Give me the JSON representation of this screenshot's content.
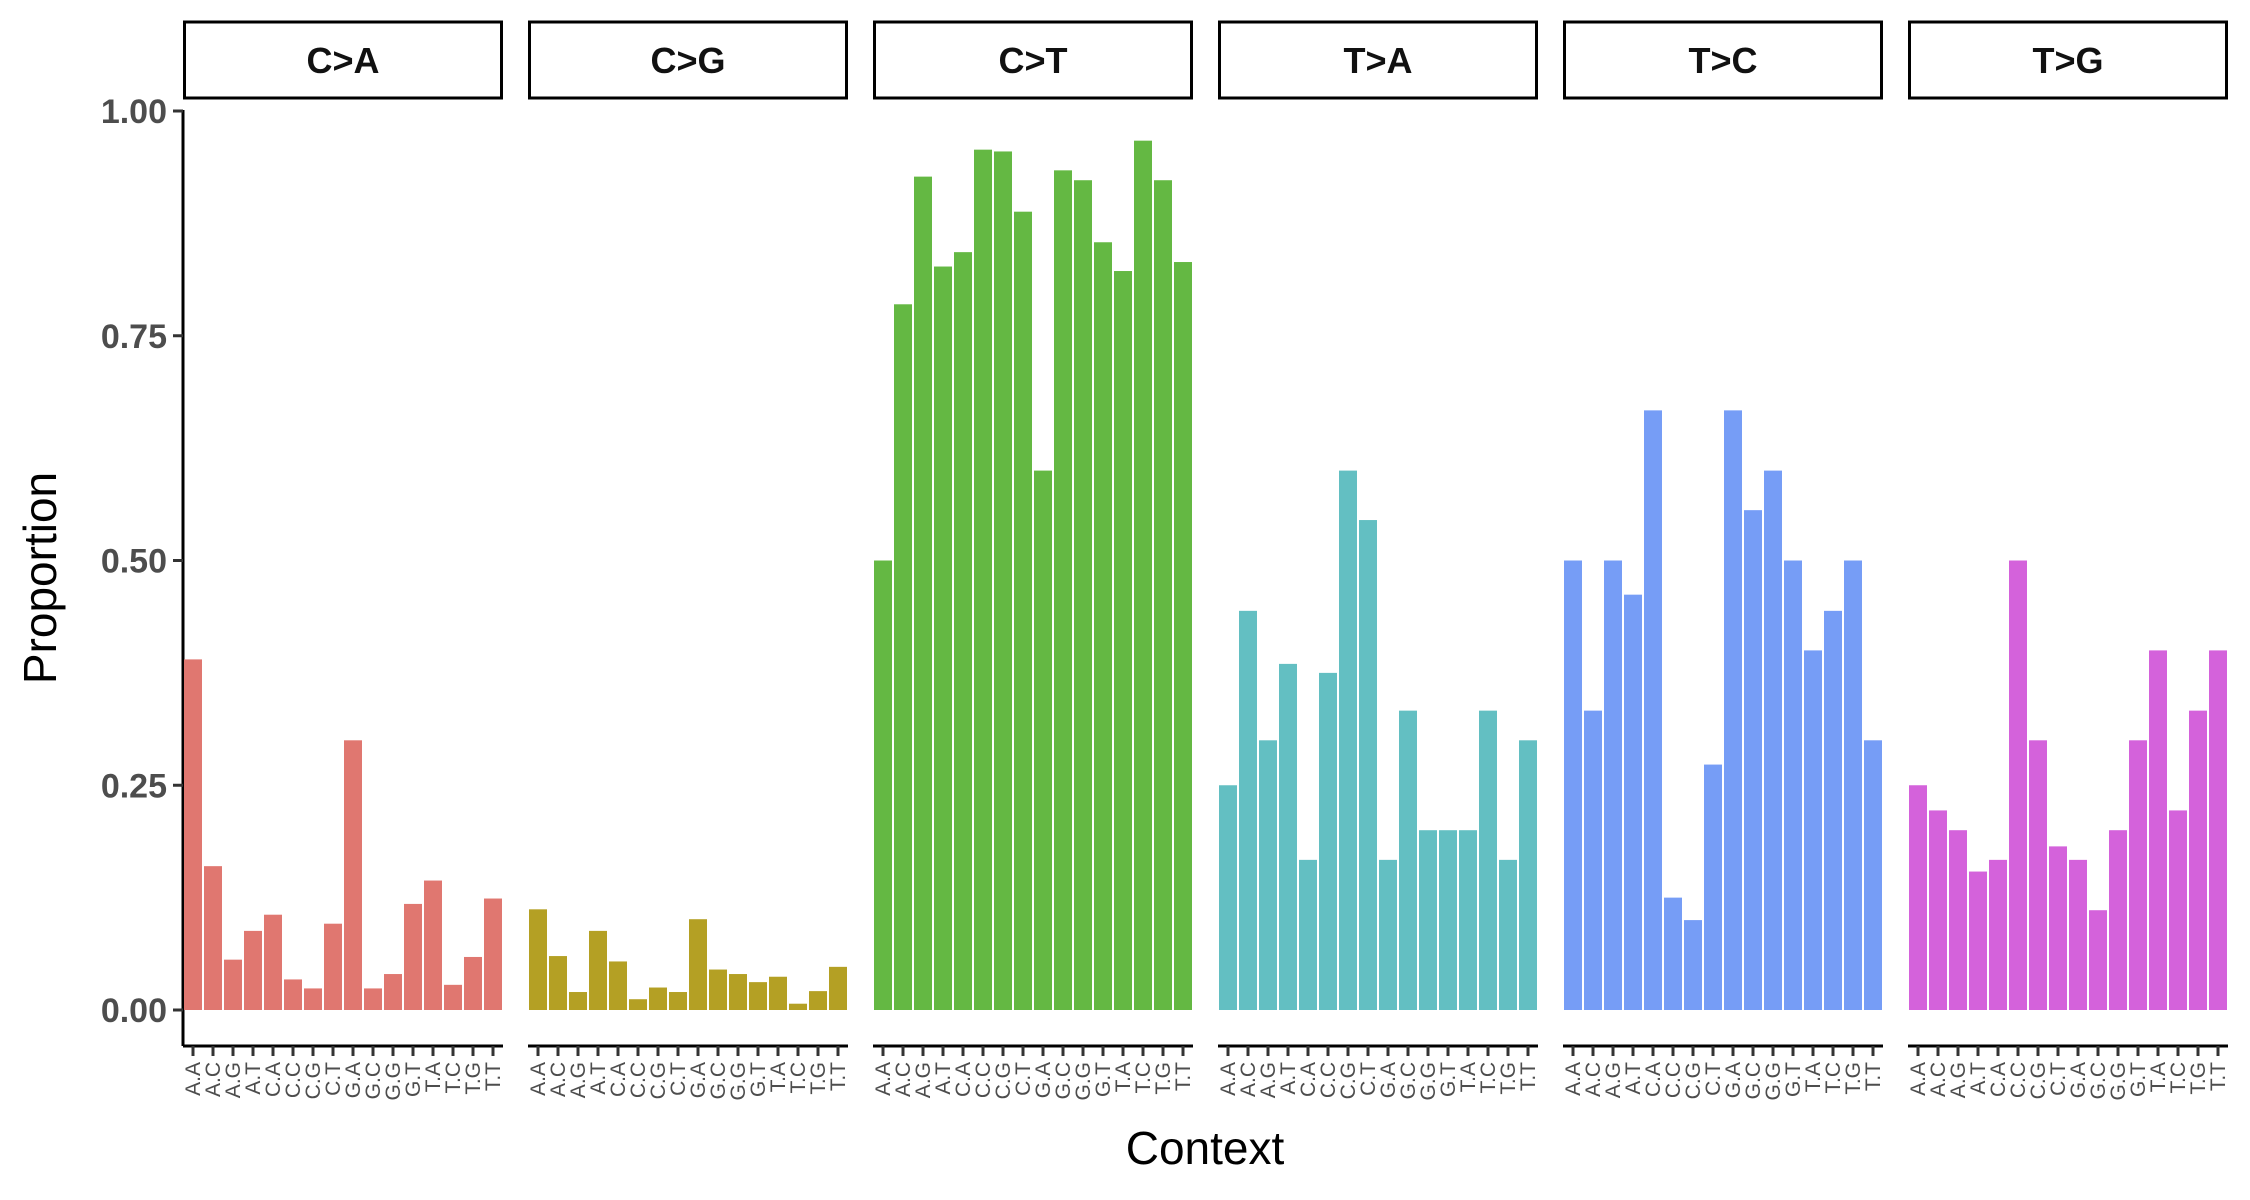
{
  "chart_data": {
    "type": "bar",
    "xlabel": "Context",
    "ylabel": "Proportion",
    "ylim": [
      0,
      1.0
    ],
    "yticks": [
      "0.00",
      "0.25",
      "0.50",
      "0.75",
      "1.00"
    ],
    "categories": [
      "A.A",
      "A.C",
      "A.G",
      "A.T",
      "C.A",
      "C.C",
      "C.G",
      "C.T",
      "G.A",
      "G.C",
      "G.G",
      "G.T",
      "T.A",
      "T.C",
      "T.G",
      "T.T"
    ],
    "grid": false,
    "legend": "none",
    "facets": [
      {
        "name": "C>A",
        "color": "#E07770",
        "values": [
          0.39,
          0.16,
          0.056,
          0.088,
          0.106,
          0.034,
          0.024,
          0.096,
          0.3,
          0.024,
          0.04,
          0.118,
          0.144,
          0.028,
          0.059,
          0.124
        ]
      },
      {
        "name": "C>G",
        "color": "#B4A024",
        "values": [
          0.112,
          0.06,
          0.02,
          0.088,
          0.054,
          0.012,
          0.025,
          0.02,
          0.101,
          0.045,
          0.04,
          0.031,
          0.037,
          0.007,
          0.021,
          0.048
        ]
      },
      {
        "name": "C>T",
        "color": "#64B843",
        "values": [
          0.5,
          0.785,
          0.927,
          0.827,
          0.843,
          0.957,
          0.955,
          0.888,
          0.6,
          0.934,
          0.923,
          0.854,
          0.822,
          0.967,
          0.923,
          0.832
        ]
      },
      {
        "name": "T>A",
        "color": "#63BFC2",
        "values": [
          0.25,
          0.444,
          0.3,
          0.385,
          0.167,
          0.375,
          0.6,
          0.545,
          0.167,
          0.333,
          0.2,
          0.2,
          0.2,
          0.333,
          0.167,
          0.3
        ]
      },
      {
        "name": "T>C",
        "color": "#769DF6",
        "values": [
          0.5,
          0.333,
          0.5,
          0.462,
          0.667,
          0.125,
          0.1,
          0.273,
          0.667,
          0.556,
          0.6,
          0.5,
          0.4,
          0.444,
          0.5,
          0.3
        ]
      },
      {
        "name": "T>G",
        "color": "#D462DB",
        "values": [
          0.25,
          0.222,
          0.2,
          0.154,
          0.167,
          0.5,
          0.3,
          0.182,
          0.167,
          0.111,
          0.2,
          0.3,
          0.4,
          0.222,
          0.333,
          0.4
        ]
      }
    ]
  }
}
